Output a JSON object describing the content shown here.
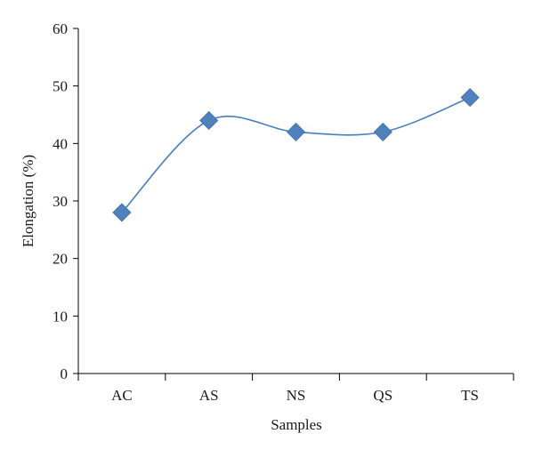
{
  "chart_data": {
    "type": "line",
    "xlabel": "Samples",
    "ylabel": "Elongation (%)",
    "categories": [
      "AC",
      "AS",
      "NS",
      "QS",
      "TS"
    ],
    "series": [
      {
        "values": [
          28,
          44,
          42,
          42,
          48
        ]
      }
    ],
    "ylim": [
      0,
      60
    ],
    "yticks": [
      0,
      10,
      20,
      30,
      40,
      50,
      60
    ],
    "grid": false,
    "marker": "diamond",
    "smooth": true,
    "colors": {
      "line": "#4a7ebb",
      "marker": "#4f81bd",
      "axis": "#000000"
    }
  }
}
